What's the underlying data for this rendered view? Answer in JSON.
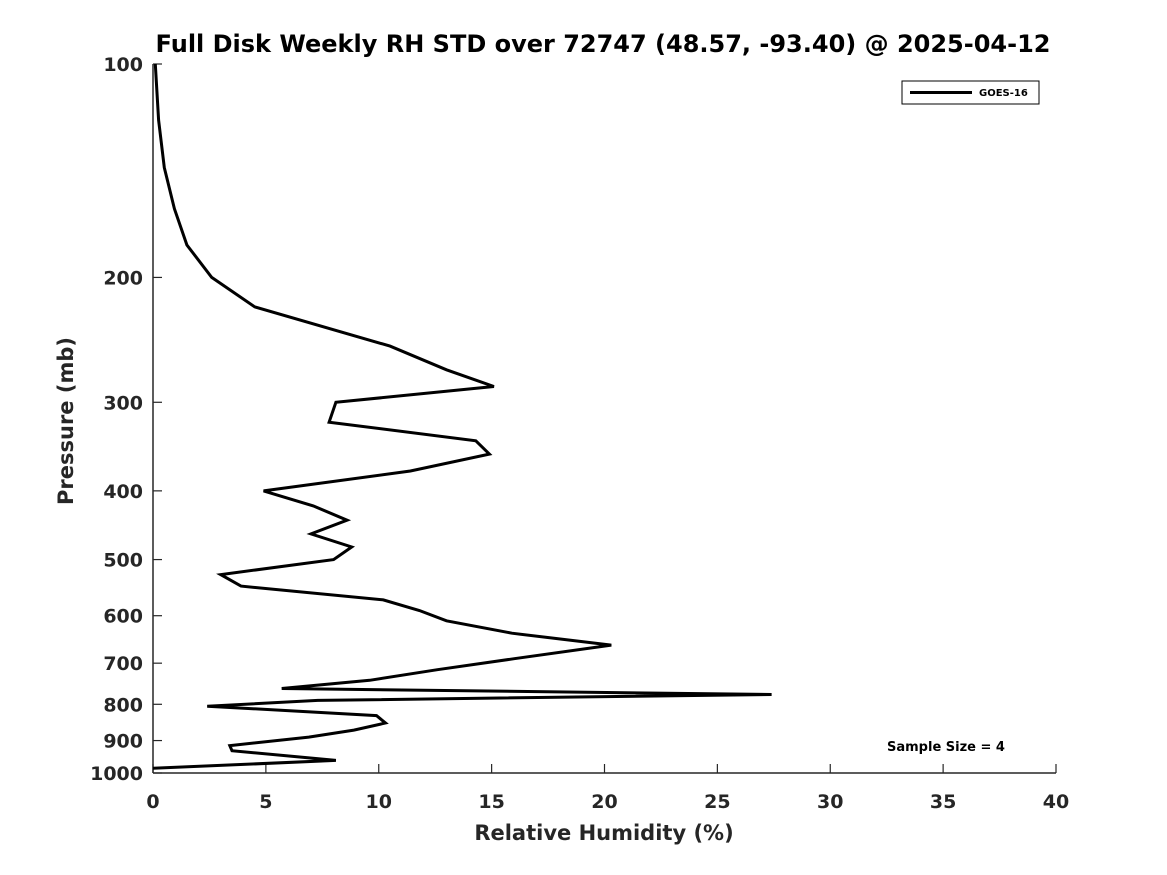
{
  "chart_data": {
    "type": "line",
    "title": "Full Disk Weekly RH STD over 72747 (48.57, -93.40) @ 2025-04-12",
    "xlabel": "Relative Humidity (%)",
    "ylabel": "Pressure (mb)",
    "xlim": [
      0,
      40
    ],
    "ylim": [
      1000,
      100
    ],
    "yscale": "log",
    "xticks": [
      0,
      5,
      10,
      15,
      20,
      25,
      30,
      35,
      40
    ],
    "xtick_labels": [
      "0",
      "5",
      "10",
      "15",
      "20",
      "25",
      "30",
      "35",
      "40"
    ],
    "yticks": [
      100,
      200,
      300,
      400,
      500,
      600,
      700,
      800,
      900,
      1000
    ],
    "ytick_labels": [
      "100",
      "200",
      "300",
      "400",
      "500",
      "600",
      "700",
      "800",
      "900",
      "1000"
    ],
    "grid": false,
    "legend_position": "top-right",
    "series": [
      {
        "name": "GOES-16",
        "color": "#000000",
        "x": [
          0.1,
          0.25,
          0.5,
          0.95,
          1.5,
          2.6,
          4.5,
          10.5,
          13.0,
          15.1,
          8.1,
          7.8,
          14.3,
          14.9,
          11.4,
          4.9,
          7.1,
          8.6,
          7.0,
          8.8,
          8.0,
          3.0,
          3.9,
          10.2,
          11.8,
          13.0,
          15.9,
          20.3,
          16.0,
          12.6,
          9.6,
          5.7,
          27.4,
          7.3,
          2.4,
          9.9,
          10.3,
          8.9,
          6.9,
          3.4,
          3.5,
          8.1,
          0.0
        ],
        "y": [
          100,
          120,
          140,
          160,
          180,
          200,
          220,
          250,
          270,
          285,
          300,
          320,
          340,
          355,
          375,
          400,
          420,
          440,
          460,
          480,
          500,
          525,
          545,
          570,
          590,
          610,
          635,
          660,
          690,
          715,
          740,
          760,
          775,
          790,
          805,
          830,
          850,
          870,
          890,
          915,
          930,
          960,
          985
        ]
      }
    ],
    "annotations": [
      "Sample Size = 4"
    ]
  }
}
